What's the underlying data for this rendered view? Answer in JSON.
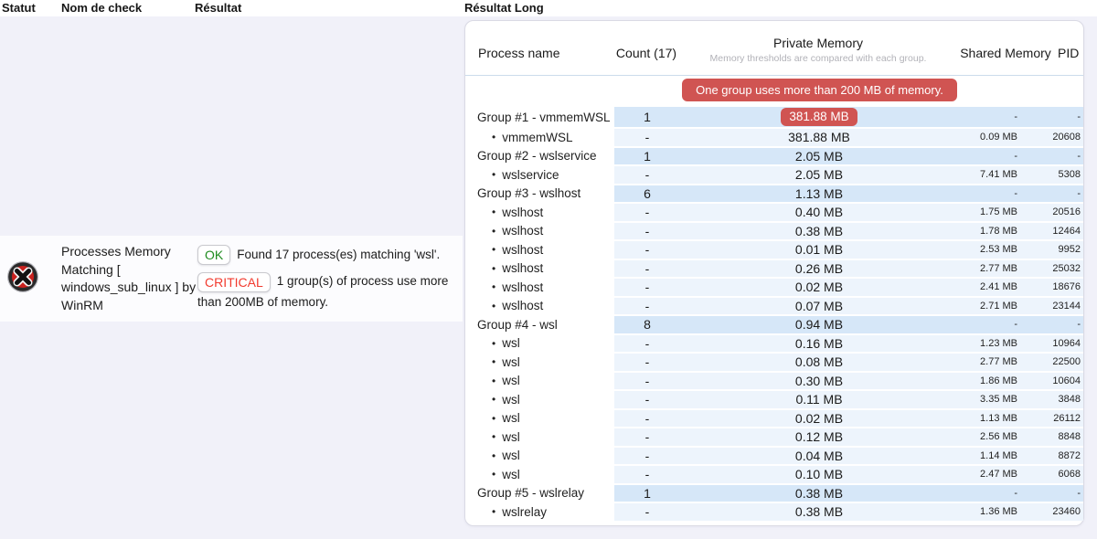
{
  "grid_header": {
    "columns": [
      "Statut",
      "Nom de check",
      "Résultat",
      "Résultat Long"
    ]
  },
  "check": {
    "status": "critical",
    "status_icon": "red-circle-black-x",
    "name": "Processes Memory Matching [ windows_sub_linux ] by WinRM",
    "results": [
      {
        "badge": "OK",
        "text": "Found 17 process(es) matching 'wsl'."
      },
      {
        "badge": "CRITICAL",
        "text": "1 group(s) of process use more than 200MB of memory."
      }
    ]
  },
  "table": {
    "header": {
      "process": "Process name",
      "count": "Count (17)",
      "private": "Private Memory",
      "private_sub": "Memory thresholds are compared with each group.",
      "shared": "Shared Memory",
      "pid": "PID"
    },
    "alert": "One group uses more than 200 MB of memory.",
    "rows": [
      {
        "type": "group",
        "name": "Group #1 - vmmemWSL",
        "count": "1",
        "private": "381.88 MB",
        "alert": true,
        "shared": "-",
        "pid": "-"
      },
      {
        "type": "process",
        "name": "vmmemWSL",
        "count": "-",
        "private": "381.88 MB",
        "shared": "0.09 MB",
        "pid": "20608"
      },
      {
        "type": "group",
        "name": "Group #2 - wslservice",
        "count": "1",
        "private": "2.05 MB",
        "shared": "-",
        "pid": "-"
      },
      {
        "type": "process",
        "name": "wslservice",
        "count": "-",
        "private": "2.05 MB",
        "shared": "7.41 MB",
        "pid": "5308"
      },
      {
        "type": "group",
        "name": "Group #3 - wslhost",
        "count": "6",
        "private": "1.13 MB",
        "shared": "-",
        "pid": "-"
      },
      {
        "type": "process",
        "name": "wslhost",
        "count": "-",
        "private": "0.40 MB",
        "shared": "1.75 MB",
        "pid": "20516"
      },
      {
        "type": "process",
        "name": "wslhost",
        "count": "-",
        "private": "0.38 MB",
        "shared": "1.78 MB",
        "pid": "12464"
      },
      {
        "type": "process",
        "name": "wslhost",
        "count": "-",
        "private": "0.01 MB",
        "shared": "2.53 MB",
        "pid": "9952"
      },
      {
        "type": "process",
        "name": "wslhost",
        "count": "-",
        "private": "0.26 MB",
        "shared": "2.77 MB",
        "pid": "25032"
      },
      {
        "type": "process",
        "name": "wslhost",
        "count": "-",
        "private": "0.02 MB",
        "shared": "2.41 MB",
        "pid": "18676"
      },
      {
        "type": "process",
        "name": "wslhost",
        "count": "-",
        "private": "0.07 MB",
        "shared": "2.71 MB",
        "pid": "23144"
      },
      {
        "type": "group",
        "name": "Group #4 - wsl",
        "count": "8",
        "private": "0.94 MB",
        "shared": "-",
        "pid": "-"
      },
      {
        "type": "process",
        "name": "wsl",
        "count": "-",
        "private": "0.16 MB",
        "shared": "1.23 MB",
        "pid": "10964"
      },
      {
        "type": "process",
        "name": "wsl",
        "count": "-",
        "private": "0.08 MB",
        "shared": "2.77 MB",
        "pid": "22500"
      },
      {
        "type": "process",
        "name": "wsl",
        "count": "-",
        "private": "0.30 MB",
        "shared": "1.86 MB",
        "pid": "10604"
      },
      {
        "type": "process",
        "name": "wsl",
        "count": "-",
        "private": "0.11 MB",
        "shared": "3.35 MB",
        "pid": "3848"
      },
      {
        "type": "process",
        "name": "wsl",
        "count": "-",
        "private": "0.02 MB",
        "shared": "1.13 MB",
        "pid": "26112"
      },
      {
        "type": "process",
        "name": "wsl",
        "count": "-",
        "private": "0.12 MB",
        "shared": "2.56 MB",
        "pid": "8848"
      },
      {
        "type": "process",
        "name": "wsl",
        "count": "-",
        "private": "0.04 MB",
        "shared": "1.14 MB",
        "pid": "8872"
      },
      {
        "type": "process",
        "name": "wsl",
        "count": "-",
        "private": "0.10 MB",
        "shared": "2.47 MB",
        "pid": "6068"
      },
      {
        "type": "group",
        "name": "Group #5 - wslrelay",
        "count": "1",
        "private": "0.38 MB",
        "shared": "-",
        "pid": "-"
      },
      {
        "type": "process",
        "name": "wslrelay",
        "count": "-",
        "private": "0.38 MB",
        "shared": "1.36 MB",
        "pid": "23460"
      }
    ]
  },
  "colors": {
    "page_bg": "#f1f1f9",
    "alert_red": "#d05452",
    "group_row_bg": "#d6e7f8",
    "process_row_bg": "#edf4fc",
    "ok_green": "#1f8c1f",
    "critical_text": "#f23b2f",
    "status_icon_red": "#c9211e"
  }
}
